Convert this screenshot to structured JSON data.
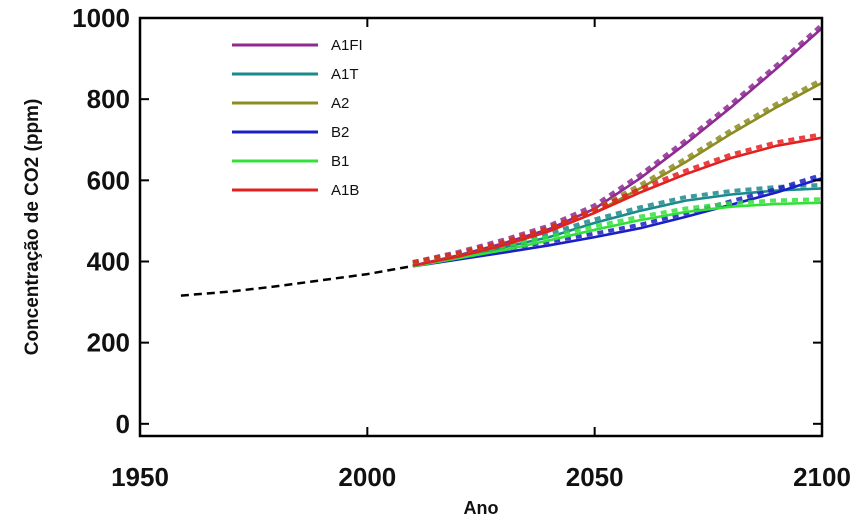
{
  "chart_data": {
    "type": "line",
    "xlabel": "Ano",
    "ylabel": "Concentração de CO2 (ppm)",
    "xlim": [
      1950,
      2100
    ],
    "ylim": [
      -30,
      1000
    ],
    "xticks": [
      1950,
      2000,
      2050,
      2100
    ],
    "yticks": [
      0,
      200,
      400,
      600,
      800,
      1000
    ],
    "grid": false,
    "legend_position": "top-left",
    "historical": {
      "style": "dashed",
      "color": "#000000",
      "x": [
        1959,
        1970,
        1980,
        1990,
        2000,
        2009
      ],
      "values": [
        316,
        326,
        339,
        354,
        369,
        387
      ]
    },
    "series": [
      {
        "name": "A1FI",
        "color": "#8e2a92",
        "x": [
          2010,
          2020,
          2030,
          2040,
          2050,
          2060,
          2070,
          2080,
          2090,
          2100
        ],
        "values": [
          390,
          415,
          445,
          480,
          530,
          605,
          690,
          780,
          875,
          975
        ]
      },
      {
        "name": "A1T",
        "color": "#1b8a8c",
        "x": [
          2010,
          2020,
          2030,
          2040,
          2050,
          2060,
          2070,
          2080,
          2090,
          2100
        ],
        "values": [
          390,
          410,
          435,
          460,
          495,
          525,
          550,
          565,
          575,
          580
        ]
      },
      {
        "name": "A2",
        "color": "#8c8c22",
        "x": [
          2010,
          2020,
          2030,
          2040,
          2050,
          2060,
          2070,
          2080,
          2090,
          2100
        ],
        "values": [
          390,
          412,
          440,
          475,
          520,
          580,
          645,
          715,
          780,
          840
        ]
      },
      {
        "name": "B2",
        "color": "#1a1fc4",
        "x": [
          2010,
          2020,
          2030,
          2040,
          2050,
          2060,
          2070,
          2080,
          2090,
          2100
        ],
        "values": [
          388,
          405,
          422,
          440,
          460,
          482,
          510,
          540,
          570,
          605
        ]
      },
      {
        "name": "B1",
        "color": "#33e03a",
        "x": [
          2010,
          2020,
          2030,
          2040,
          2050,
          2060,
          2070,
          2080,
          2090,
          2100
        ],
        "values": [
          388,
          408,
          428,
          452,
          478,
          502,
          522,
          535,
          542,
          545
        ]
      },
      {
        "name": "A1B",
        "color": "#e32020",
        "x": [
          2010,
          2020,
          2030,
          2040,
          2050,
          2060,
          2070,
          2080,
          2090,
          2100
        ],
        "values": [
          390,
          412,
          440,
          475,
          520,
          570,
          615,
          655,
          685,
          705
        ]
      }
    ]
  }
}
